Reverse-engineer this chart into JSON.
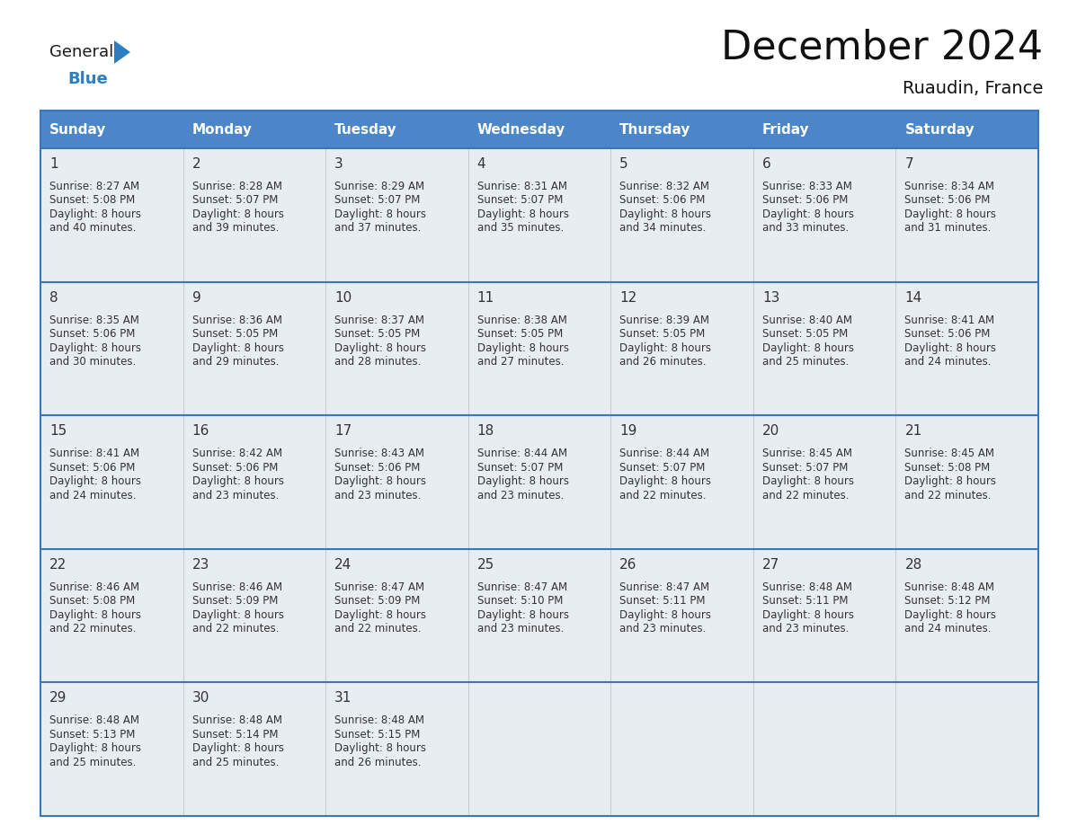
{
  "title": "December 2024",
  "subtitle": "Ruaudin, France",
  "header_color": "#4a86c8",
  "header_text_color": "#ffffff",
  "cell_bg_color": "#e8edf2",
  "cell_bg_alt": "#ffffff",
  "grid_line_color": "#3a76b8",
  "text_color": "#333333",
  "day_names": [
    "Sunday",
    "Monday",
    "Tuesday",
    "Wednesday",
    "Thursday",
    "Friday",
    "Saturday"
  ],
  "days": [
    {
      "day": 1,
      "col": 0,
      "row": 0,
      "sunrise": "8:27 AM",
      "sunset": "5:08 PM",
      "daylight_min": "40"
    },
    {
      "day": 2,
      "col": 1,
      "row": 0,
      "sunrise": "8:28 AM",
      "sunset": "5:07 PM",
      "daylight_min": "39"
    },
    {
      "day": 3,
      "col": 2,
      "row": 0,
      "sunrise": "8:29 AM",
      "sunset": "5:07 PM",
      "daylight_min": "37"
    },
    {
      "day": 4,
      "col": 3,
      "row": 0,
      "sunrise": "8:31 AM",
      "sunset": "5:07 PM",
      "daylight_min": "35"
    },
    {
      "day": 5,
      "col": 4,
      "row": 0,
      "sunrise": "8:32 AM",
      "sunset": "5:06 PM",
      "daylight_min": "34"
    },
    {
      "day": 6,
      "col": 5,
      "row": 0,
      "sunrise": "8:33 AM",
      "sunset": "5:06 PM",
      "daylight_min": "33"
    },
    {
      "day": 7,
      "col": 6,
      "row": 0,
      "sunrise": "8:34 AM",
      "sunset": "5:06 PM",
      "daylight_min": "31"
    },
    {
      "day": 8,
      "col": 0,
      "row": 1,
      "sunrise": "8:35 AM",
      "sunset": "5:06 PM",
      "daylight_min": "30"
    },
    {
      "day": 9,
      "col": 1,
      "row": 1,
      "sunrise": "8:36 AM",
      "sunset": "5:05 PM",
      "daylight_min": "29"
    },
    {
      "day": 10,
      "col": 2,
      "row": 1,
      "sunrise": "8:37 AM",
      "sunset": "5:05 PM",
      "daylight_min": "28"
    },
    {
      "day": 11,
      "col": 3,
      "row": 1,
      "sunrise": "8:38 AM",
      "sunset": "5:05 PM",
      "daylight_min": "27"
    },
    {
      "day": 12,
      "col": 4,
      "row": 1,
      "sunrise": "8:39 AM",
      "sunset": "5:05 PM",
      "daylight_min": "26"
    },
    {
      "day": 13,
      "col": 5,
      "row": 1,
      "sunrise": "8:40 AM",
      "sunset": "5:05 PM",
      "daylight_min": "25"
    },
    {
      "day": 14,
      "col": 6,
      "row": 1,
      "sunrise": "8:41 AM",
      "sunset": "5:06 PM",
      "daylight_min": "24"
    },
    {
      "day": 15,
      "col": 0,
      "row": 2,
      "sunrise": "8:41 AM",
      "sunset": "5:06 PM",
      "daylight_min": "24"
    },
    {
      "day": 16,
      "col": 1,
      "row": 2,
      "sunrise": "8:42 AM",
      "sunset": "5:06 PM",
      "daylight_min": "23"
    },
    {
      "day": 17,
      "col": 2,
      "row": 2,
      "sunrise": "8:43 AM",
      "sunset": "5:06 PM",
      "daylight_min": "23"
    },
    {
      "day": 18,
      "col": 3,
      "row": 2,
      "sunrise": "8:44 AM",
      "sunset": "5:07 PM",
      "daylight_min": "23"
    },
    {
      "day": 19,
      "col": 4,
      "row": 2,
      "sunrise": "8:44 AM",
      "sunset": "5:07 PM",
      "daylight_min": "22"
    },
    {
      "day": 20,
      "col": 5,
      "row": 2,
      "sunrise": "8:45 AM",
      "sunset": "5:07 PM",
      "daylight_min": "22"
    },
    {
      "day": 21,
      "col": 6,
      "row": 2,
      "sunrise": "8:45 AM",
      "sunset": "5:08 PM",
      "daylight_min": "22"
    },
    {
      "day": 22,
      "col": 0,
      "row": 3,
      "sunrise": "8:46 AM",
      "sunset": "5:08 PM",
      "daylight_min": "22"
    },
    {
      "day": 23,
      "col": 1,
      "row": 3,
      "sunrise": "8:46 AM",
      "sunset": "5:09 PM",
      "daylight_min": "22"
    },
    {
      "day": 24,
      "col": 2,
      "row": 3,
      "sunrise": "8:47 AM",
      "sunset": "5:09 PM",
      "daylight_min": "22"
    },
    {
      "day": 25,
      "col": 3,
      "row": 3,
      "sunrise": "8:47 AM",
      "sunset": "5:10 PM",
      "daylight_min": "23"
    },
    {
      "day": 26,
      "col": 4,
      "row": 3,
      "sunrise": "8:47 AM",
      "sunset": "5:11 PM",
      "daylight_min": "23"
    },
    {
      "day": 27,
      "col": 5,
      "row": 3,
      "sunrise": "8:48 AM",
      "sunset": "5:11 PM",
      "daylight_min": "23"
    },
    {
      "day": 28,
      "col": 6,
      "row": 3,
      "sunrise": "8:48 AM",
      "sunset": "5:12 PM",
      "daylight_min": "24"
    },
    {
      "day": 29,
      "col": 0,
      "row": 4,
      "sunrise": "8:48 AM",
      "sunset": "5:13 PM",
      "daylight_min": "25"
    },
    {
      "day": 30,
      "col": 1,
      "row": 4,
      "sunrise": "8:48 AM",
      "sunset": "5:14 PM",
      "daylight_min": "25"
    },
    {
      "day": 31,
      "col": 2,
      "row": 4,
      "sunrise": "8:48 AM",
      "sunset": "5:15 PM",
      "daylight_min": "26"
    }
  ],
  "logo_general_color": "#1a1a1a",
  "logo_blue_color": "#2b7fc1",
  "logo_triangle_color": "#2b7fc1",
  "title_fontsize": 32,
  "subtitle_fontsize": 14,
  "header_fontsize": 11,
  "day_num_fontsize": 11,
  "cell_fontsize": 8.5
}
